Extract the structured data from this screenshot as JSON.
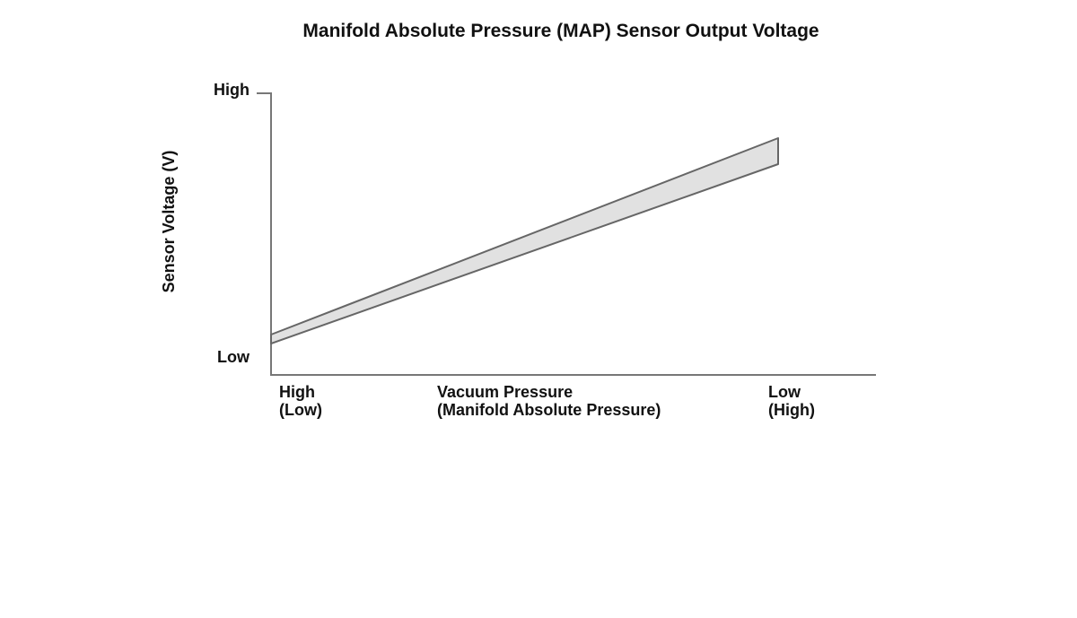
{
  "title": "Manifold Absolute Pressure (MAP) Sensor Output Voltage",
  "y_axis": {
    "label": "Sensor Voltage (V)",
    "high": "High",
    "low": "Low"
  },
  "x_axis": {
    "left": [
      "High",
      "(Low)"
    ],
    "center": [
      "Vacuum Pressure",
      "(Manifold Absolute Pressure)"
    ],
    "right": [
      "Low",
      "(High)"
    ]
  }
}
